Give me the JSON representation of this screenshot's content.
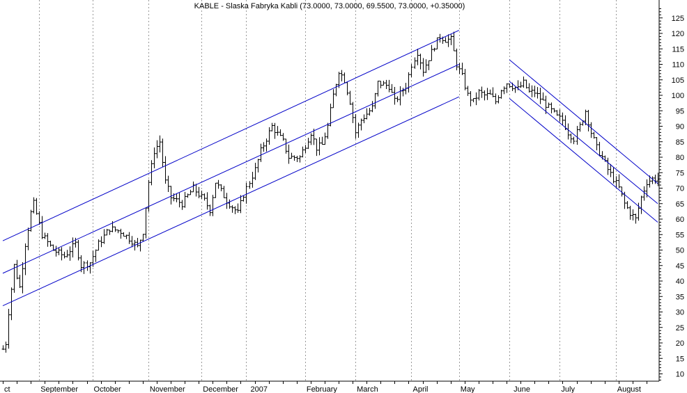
{
  "chart_data": {
    "type": "ohlc",
    "title": "KABLE - Slaska Fabryka Kabli (73.0000, 73.0000, 69.5500, 73.0000, +0.35000)",
    "ylim": [
      7,
      130
    ],
    "y_ticks": [
      10,
      15,
      20,
      25,
      30,
      35,
      40,
      45,
      50,
      55,
      60,
      65,
      70,
      75,
      80,
      85,
      90,
      95,
      100,
      105,
      110,
      115,
      120,
      125
    ],
    "x_labels": [
      {
        "label": "ct",
        "index": 0
      },
      {
        "label": "September",
        "index": 13
      },
      {
        "label": "October",
        "index": 32
      },
      {
        "label": "November",
        "index": 52
      },
      {
        "label": "December",
        "index": 71
      },
      {
        "label": "2007",
        "index": 88
      },
      {
        "label": "February",
        "index": 108
      },
      {
        "label": "March",
        "index": 126
      },
      {
        "label": "April",
        "index": 146
      },
      {
        "label": "May",
        "index": 163
      },
      {
        "label": "June",
        "index": 182
      },
      {
        "label": "July",
        "index": 199
      },
      {
        "label": "August",
        "index": 219
      }
    ],
    "month_gridline_indices": [
      13,
      32,
      52,
      71,
      87,
      108,
      126,
      146,
      163,
      181,
      199,
      219
    ],
    "bar_count": 235,
    "waypoints": [
      [
        0,
        18
      ],
      [
        1,
        20
      ],
      [
        2,
        30
      ],
      [
        4,
        45
      ],
      [
        6,
        38
      ],
      [
        8,
        52
      ],
      [
        10,
        62
      ],
      [
        11,
        65
      ],
      [
        14,
        55
      ],
      [
        18,
        50
      ],
      [
        22,
        48
      ],
      [
        26,
        52
      ],
      [
        28,
        45
      ],
      [
        31,
        46
      ],
      [
        34,
        52
      ],
      [
        38,
        57
      ],
      [
        42,
        56
      ],
      [
        46,
        53
      ],
      [
        48,
        51
      ],
      [
        50,
        56
      ],
      [
        52,
        72
      ],
      [
        54,
        82
      ],
      [
        56,
        85
      ],
      [
        58,
        72
      ],
      [
        60,
        67
      ],
      [
        64,
        65
      ],
      [
        68,
        70
      ],
      [
        72,
        66
      ],
      [
        74,
        63
      ],
      [
        76,
        72
      ],
      [
        80,
        66
      ],
      [
        84,
        62
      ],
      [
        86,
        68
      ],
      [
        88,
        72
      ],
      [
        90,
        76
      ],
      [
        92,
        82
      ],
      [
        96,
        90
      ],
      [
        100,
        85
      ],
      [
        102,
        80
      ],
      [
        106,
        80
      ],
      [
        108,
        84
      ],
      [
        110,
        88
      ],
      [
        112,
        83
      ],
      [
        114,
        84
      ],
      [
        116,
        90
      ],
      [
        118,
        100
      ],
      [
        120,
        108
      ],
      [
        122,
        105
      ],
      [
        124,
        98
      ],
      [
        126,
        88
      ],
      [
        128,
        92
      ],
      [
        132,
        96
      ],
      [
        134,
        104
      ],
      [
        138,
        103
      ],
      [
        140,
        98
      ],
      [
        144,
        103
      ],
      [
        146,
        110
      ],
      [
        148,
        114
      ],
      [
        150,
        108
      ],
      [
        152,
        112
      ],
      [
        154,
        116
      ],
      [
        156,
        119
      ],
      [
        158,
        118
      ],
      [
        160,
        118
      ],
      [
        162,
        110
      ],
      [
        164,
        106
      ],
      [
        166,
        100
      ],
      [
        168,
        98
      ],
      [
        170,
        101
      ],
      [
        172,
        100
      ],
      [
        174,
        100
      ],
      [
        176,
        98
      ],
      [
        178,
        102
      ],
      [
        180,
        104
      ],
      [
        182,
        103
      ],
      [
        184,
        102
      ],
      [
        186,
        104
      ],
      [
        188,
        101
      ],
      [
        190,
        101
      ],
      [
        192,
        99
      ],
      [
        194,
        97
      ],
      [
        196,
        95
      ],
      [
        198,
        93
      ],
      [
        200,
        92
      ],
      [
        202,
        88
      ],
      [
        204,
        86
      ],
      [
        206,
        90
      ],
      [
        208,
        95
      ],
      [
        210,
        88
      ],
      [
        212,
        83
      ],
      [
        214,
        80
      ],
      [
        216,
        76
      ],
      [
        218,
        73
      ],
      [
        220,
        70
      ],
      [
        222,
        65
      ],
      [
        224,
        62
      ],
      [
        226,
        60
      ],
      [
        228,
        67
      ],
      [
        230,
        72
      ],
      [
        232,
        73
      ],
      [
        234,
        73
      ]
    ],
    "regression_channels": [
      {
        "name": "upper",
        "color": "#0000c8",
        "from": [
          0,
          53
        ],
        "to": [
          163,
          121
        ]
      },
      {
        "name": "middle",
        "color": "#0000c8",
        "from": [
          0,
          42.5
        ],
        "to": [
          163,
          110
        ]
      },
      {
        "name": "lower",
        "color": "#0000c8",
        "from": [
          0,
          32
        ],
        "to": [
          163,
          99.5
        ]
      },
      {
        "name": "down-upper",
        "color": "#0000c8",
        "from": [
          181,
          111.5
        ],
        "to": [
          235,
          71.5
        ]
      },
      {
        "name": "down-middle",
        "color": "#0000c8",
        "from": [
          181,
          104.5
        ],
        "to": [
          235,
          65
        ]
      },
      {
        "name": "down-lower",
        "color": "#0000c8",
        "from": [
          181,
          99
        ],
        "to": [
          235,
          59
        ]
      }
    ],
    "grid": true,
    "colors": {
      "bars": "#000000",
      "channels": "#0000c8",
      "grid": "#999999",
      "background": "#ffffff"
    }
  }
}
